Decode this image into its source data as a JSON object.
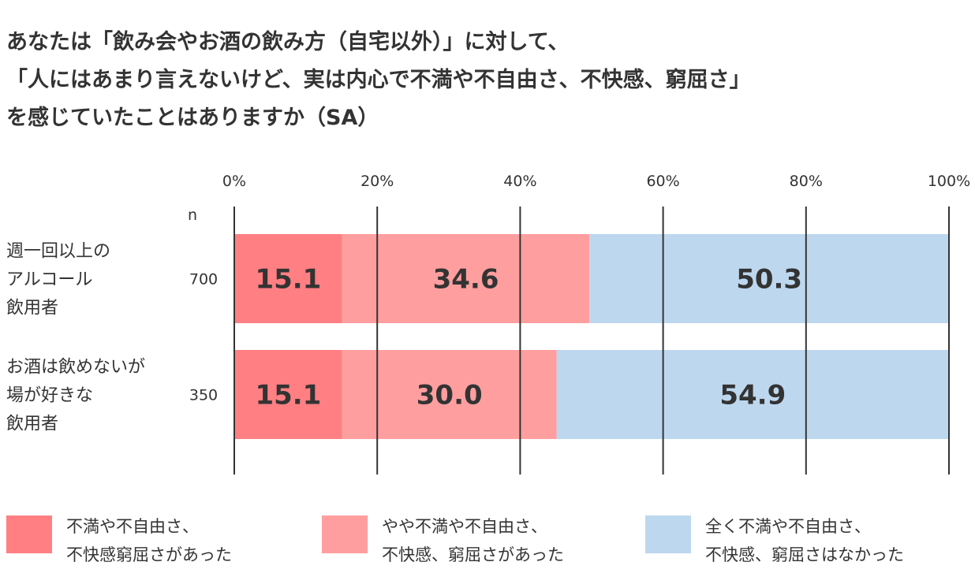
{
  "title_lines": [
    "あなたは「飲み会やお酒の飲み方（自宅以外）」に対して、",
    "「人にはあまり言えないけど、実は内心で不満や不自由さ、不快感、窮屈さ」",
    "を感じていたことはありますか（SA）"
  ],
  "chart_data": {
    "type": "bar",
    "orientation": "horizontal",
    "stacked": true,
    "xlim": [
      0,
      100
    ],
    "x_ticks": [
      "0%",
      "20%",
      "40%",
      "60%",
      "80%",
      "100%"
    ],
    "n_header": "n",
    "categories": [
      {
        "label_lines": [
          "週一回以上の",
          "アルコール",
          "飲用者"
        ],
        "n": "700"
      },
      {
        "label_lines": [
          "お酒は飲めないが",
          "場が好きな",
          "飲用者"
        ],
        "n": "350"
      }
    ],
    "series": [
      {
        "name": "不満や不自由さ、\n不快感窮屈さがあった",
        "color": "#FF7F83",
        "values": [
          15.1,
          15.1
        ],
        "labels": [
          "15.1",
          "15.1"
        ]
      },
      {
        "name": "やや不満や不自由さ、\n不快感、窮屈さがあった",
        "color": "#FF9E9F",
        "values": [
          34.6,
          30.0
        ],
        "labels": [
          "34.6",
          "30.0"
        ]
      },
      {
        "name": "全く不満や不自由さ、\n不快感、窮屈さはなかった",
        "color": "#BDD7EE",
        "values": [
          50.3,
          54.9
        ],
        "labels": [
          "50.3",
          "54.9"
        ]
      }
    ],
    "grid": true,
    "legend_position": "bottom"
  }
}
